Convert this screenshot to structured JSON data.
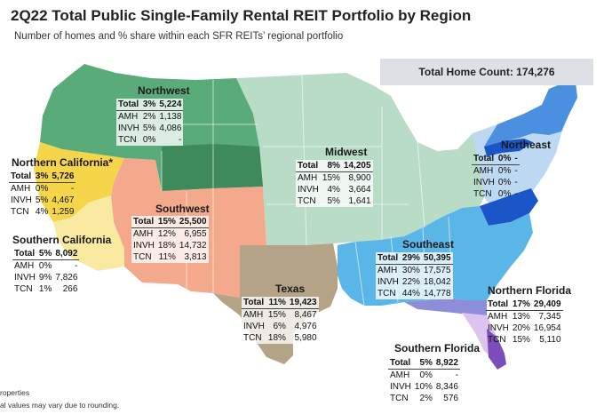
{
  "header": {
    "title": "2Q22 Total Public Single-Family Rental REIT Portfolio by Region",
    "subtitle": "Number of homes and % share within each SFR REITs’ regional portfolio",
    "total_home_count": "Total Home Count: 174,276"
  },
  "colors": {
    "northwest": "#5aab7a",
    "northwest_dark": "#3f8a5c",
    "midwest": "#b9dcc6",
    "northeast_light": "#bcd8f2",
    "northeast_mid": "#4a8fe0",
    "northeast_dark": "#1a56c8",
    "southeast": "#5bb6e8",
    "southeast_dark": "#3a9fd8",
    "southwest": "#f4a98d",
    "texas": "#b4a386",
    "northern_california": "#f5d54a",
    "southern_california": "#fae9a0",
    "northern_florida": "#8e8ed8",
    "southern_florida": "#dcc4ee",
    "southern_florida_tip": "#7a4db8"
  },
  "regions": {
    "northwest": {
      "name": "Northwest",
      "rows": [
        [
          "Total",
          "3%",
          "5,224"
        ],
        [
          "AMH",
          "2%",
          "1,138"
        ],
        [
          "INVH",
          "5%",
          "4,086"
        ],
        [
          "TCN",
          "0%",
          "-"
        ]
      ]
    },
    "northern_california": {
      "name": "Northern California*",
      "rows": [
        [
          "Total",
          "3%",
          "5,726"
        ],
        [
          "AMH",
          "0%",
          "-"
        ],
        [
          "INVH",
          "5%",
          "4,467"
        ],
        [
          "TCN",
          "4%",
          "1,259"
        ]
      ]
    },
    "southern_california": {
      "name": "Southern California",
      "rows": [
        [
          "Total",
          "5%",
          "8,092"
        ],
        [
          "AMH",
          "0%",
          "-"
        ],
        [
          "INVH",
          "9%",
          "7,826"
        ],
        [
          "TCN",
          "1%",
          "266"
        ]
      ]
    },
    "southwest": {
      "name": "Southwest",
      "rows": [
        [
          "Total",
          "15%",
          "25,500"
        ],
        [
          "AMH",
          "12%",
          "6,955"
        ],
        [
          "INVH",
          "18%",
          "14,732"
        ],
        [
          "TCN",
          "11%",
          "3,813"
        ]
      ]
    },
    "midwest": {
      "name": "Midwest",
      "rows": [
        [
          "Total",
          "8%",
          "14,205"
        ],
        [
          "AMH",
          "15%",
          "8,900"
        ],
        [
          "INVH",
          "4%",
          "3,664"
        ],
        [
          "TCN",
          "5%",
          "1,641"
        ]
      ]
    },
    "northeast": {
      "name": "Northeast",
      "rows": [
        [
          "Total",
          "0%",
          "-"
        ],
        [
          "AMH",
          "0%",
          "-"
        ],
        [
          "INVH",
          "0%",
          "-"
        ],
        [
          "TCN",
          "0%",
          "-"
        ]
      ]
    },
    "southeast": {
      "name": "Southeast",
      "rows": [
        [
          "Total",
          "29%",
          "50,395"
        ],
        [
          "AMH",
          "30%",
          "17,575"
        ],
        [
          "INVH",
          "22%",
          "18,042"
        ],
        [
          "TCN",
          "44%",
          "14,778"
        ]
      ]
    },
    "texas": {
      "name": "Texas",
      "rows": [
        [
          "Total",
          "11%",
          "19,423"
        ],
        [
          "AMH",
          "15%",
          "8,467"
        ],
        [
          "INVH",
          "6%",
          "4,976"
        ],
        [
          "TCN",
          "18%",
          "5,980"
        ]
      ]
    },
    "northern_florida": {
      "name": "Northern Florida",
      "rows": [
        [
          "Total",
          "17%",
          "29,409"
        ],
        [
          "AMH",
          "13%",
          "7,345"
        ],
        [
          "INVH",
          "20%",
          "16,954"
        ],
        [
          "TCN",
          "15%",
          "5,110"
        ]
      ]
    },
    "southern_florida": {
      "name": "Southern Florida",
      "rows": [
        [
          "Total",
          "5%",
          "8,922"
        ],
        [
          "AMH",
          "0%",
          "-"
        ],
        [
          "INVH",
          "10%",
          "8,346"
        ],
        [
          "TCN",
          "2%",
          "576"
        ]
      ]
    }
  },
  "notes": {
    "line1": "roperties",
    "line2": "al values may vary due to rounding."
  }
}
